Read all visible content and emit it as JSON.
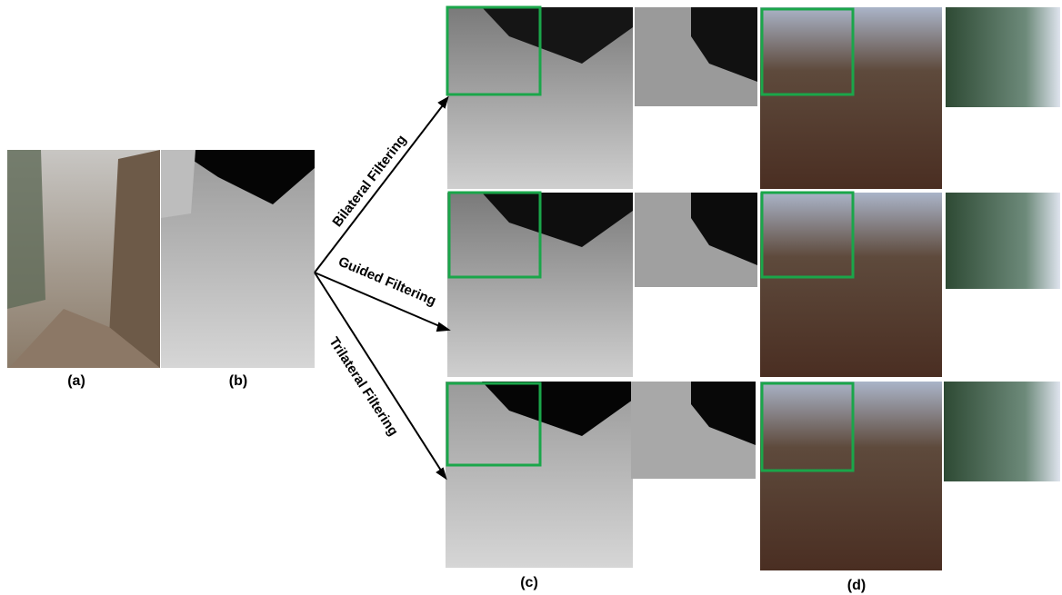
{
  "panel_labels": [
    "(a)",
    "(b)",
    "(c)",
    "(d)"
  ],
  "arrow_labels": [
    "Bilateral Filtering",
    "Guided Filtering",
    "Trilateral Filtering"
  ]
}
